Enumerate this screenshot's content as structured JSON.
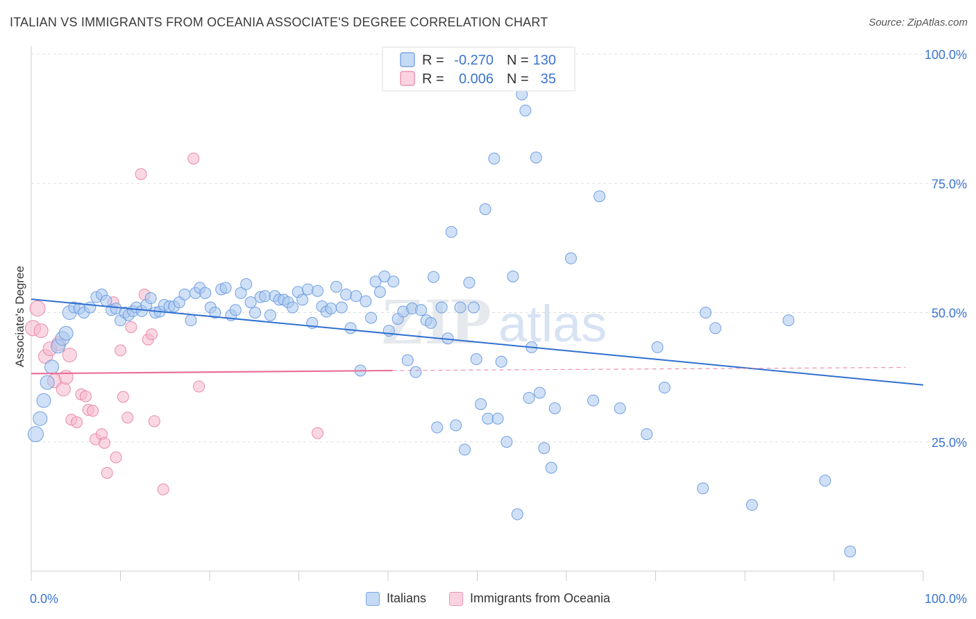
{
  "title": "ITALIAN VS IMMIGRANTS FROM OCEANIA ASSOCIATE'S DEGREE CORRELATION CHART",
  "source": "Source: ZipAtlas.com",
  "watermark": {
    "zip": "ZIP",
    "atlas": "atlas"
  },
  "colors": {
    "blue_fill": "#a9c8f0",
    "blue_stroke": "#6f9ee0",
    "blue_line": "#2f6fd1",
    "pink_fill": "#f6b8cc",
    "pink_stroke": "#e98aa8",
    "pink_line": "#e8709a",
    "axis_text": "#3b74d0",
    "grid": "#dddddd"
  },
  "stats_legend": [
    {
      "r_label": "R =",
      "r_value": "-0.270",
      "n_label": "N =",
      "n_value": "130",
      "color": "blue"
    },
    {
      "r_label": "R =",
      "r_value": "0.006",
      "n_label": "N =",
      "n_value": "35",
      "color": "pink"
    }
  ],
  "chart_data": {
    "type": "scatter",
    "title": "ITALIAN VS IMMIGRANTS FROM OCEANIA ASSOCIATE'S DEGREE CORRELATION CHART",
    "xlabel": "",
    "ylabel": "Associate's Degree",
    "xlim": [
      0,
      100
    ],
    "ylim": [
      0,
      100
    ],
    "x_tick_labels": [
      "0.0%",
      "100.0%"
    ],
    "y_ticks": [
      25,
      50,
      75,
      100
    ],
    "y_tick_labels": [
      "25.0%",
      "50.0%",
      "75.0%",
      "100.0%"
    ],
    "grid": true,
    "legend_position": "bottom",
    "series": [
      {
        "name": "Italians",
        "color": "blue",
        "trend": {
          "x0": 0,
          "y0": 52.6,
          "x1": 100,
          "y1": 36.0
        },
        "points": [
          [
            0.5,
            26.5
          ],
          [
            1.0,
            29.5
          ],
          [
            1.4,
            33.0
          ],
          [
            1.8,
            36.5
          ],
          [
            2.3,
            39.5
          ],
          [
            3.0,
            43.5
          ],
          [
            3.5,
            45.0
          ],
          [
            3.9,
            46.0
          ],
          [
            4.3,
            50.0
          ],
          [
            4.8,
            51.0
          ],
          [
            5.4,
            50.8
          ],
          [
            5.9,
            50.0
          ],
          [
            6.6,
            51.0
          ],
          [
            7.3,
            53.0
          ],
          [
            7.9,
            53.5
          ],
          [
            8.4,
            52.3
          ],
          [
            9.0,
            50.5
          ],
          [
            9.5,
            50.8
          ],
          [
            10.0,
            48.5
          ],
          [
            10.5,
            50.0
          ],
          [
            10.9,
            49.5
          ],
          [
            11.4,
            50.3
          ],
          [
            11.8,
            51.0
          ],
          [
            12.4,
            50.3
          ],
          [
            12.9,
            51.5
          ],
          [
            13.4,
            52.8
          ],
          [
            13.9,
            50.0
          ],
          [
            14.4,
            50.2
          ],
          [
            14.9,
            51.5
          ],
          [
            15.5,
            51.2
          ],
          [
            16.0,
            51.2
          ],
          [
            16.6,
            52.0
          ],
          [
            17.2,
            53.5
          ],
          [
            17.9,
            48.5
          ],
          [
            18.4,
            53.8
          ],
          [
            18.9,
            54.8
          ],
          [
            19.5,
            53.8
          ],
          [
            20.1,
            51.0
          ],
          [
            20.6,
            50.0
          ],
          [
            21.3,
            54.5
          ],
          [
            21.8,
            54.8
          ],
          [
            22.4,
            49.5
          ],
          [
            22.9,
            50.5
          ],
          [
            23.5,
            53.8
          ],
          [
            24.1,
            55.5
          ],
          [
            24.6,
            52.0
          ],
          [
            25.1,
            50.0
          ],
          [
            25.7,
            53.0
          ],
          [
            26.2,
            53.2
          ],
          [
            26.8,
            49.5
          ],
          [
            27.3,
            53.2
          ],
          [
            27.8,
            52.5
          ],
          [
            28.3,
            52.5
          ],
          [
            28.8,
            52.0
          ],
          [
            29.3,
            51.0
          ],
          [
            29.9,
            54.0
          ],
          [
            30.4,
            52.5
          ],
          [
            31.0,
            54.5
          ],
          [
            31.5,
            48.0
          ],
          [
            32.1,
            54.2
          ],
          [
            32.6,
            51.2
          ],
          [
            33.1,
            50.2
          ],
          [
            33.6,
            50.8
          ],
          [
            34.2,
            55.0
          ],
          [
            34.8,
            51.0
          ],
          [
            35.3,
            53.5
          ],
          [
            35.8,
            47.0
          ],
          [
            36.4,
            53.2
          ],
          [
            36.9,
            38.8
          ],
          [
            37.5,
            52.2
          ],
          [
            38.1,
            49.0
          ],
          [
            38.6,
            56.0
          ],
          [
            39.1,
            54.0
          ],
          [
            39.6,
            57.0
          ],
          [
            40.1,
            46.5
          ],
          [
            40.6,
            56.0
          ],
          [
            41.1,
            48.8
          ],
          [
            41.7,
            50.2
          ],
          [
            42.2,
            40.8
          ],
          [
            42.7,
            50.8
          ],
          [
            43.1,
            38.5
          ],
          [
            43.7,
            50.5
          ],
          [
            44.3,
            48.5
          ],
          [
            44.8,
            48.0
          ],
          [
            45.1,
            56.9
          ],
          [
            45.5,
            27.8
          ],
          [
            46.0,
            51.0
          ],
          [
            46.7,
            45.0
          ],
          [
            47.1,
            65.6
          ],
          [
            47.6,
            28.2
          ],
          [
            48.1,
            51.0
          ],
          [
            48.6,
            23.5
          ],
          [
            49.1,
            55.8
          ],
          [
            49.6,
            51.0
          ],
          [
            49.9,
            41.0
          ],
          [
            50.4,
            32.3
          ],
          [
            50.9,
            70.0
          ],
          [
            51.2,
            29.5
          ],
          [
            51.9,
            79.8
          ],
          [
            52.3,
            29.5
          ],
          [
            52.7,
            40.5
          ],
          [
            53.3,
            25.0
          ],
          [
            54.0,
            57.0
          ],
          [
            54.5,
            11.0
          ],
          [
            55.0,
            92.2
          ],
          [
            55.4,
            89.1
          ],
          [
            55.8,
            33.5
          ],
          [
            56.1,
            43.3
          ],
          [
            56.6,
            80.0
          ],
          [
            57.0,
            34.5
          ],
          [
            57.5,
            23.8
          ],
          [
            58.3,
            20.0
          ],
          [
            58.7,
            31.5
          ],
          [
            60.5,
            60.5
          ],
          [
            63.0,
            33.0
          ],
          [
            63.7,
            72.5
          ],
          [
            66.0,
            31.5
          ],
          [
            69.0,
            26.5
          ],
          [
            70.2,
            43.3
          ],
          [
            71.0,
            35.5
          ],
          [
            75.3,
            16.0
          ],
          [
            75.6,
            50.0
          ],
          [
            76.7,
            47.0
          ],
          [
            80.8,
            12.8
          ],
          [
            84.9,
            48.5
          ],
          [
            89.0,
            17.5
          ],
          [
            91.8,
            3.8
          ]
        ]
      },
      {
        "name": "Immigrants from Oceania",
        "color": "pink",
        "trend": {
          "x0": 0,
          "y0": 38.2,
          "x1": 40.5,
          "y1": 38.8,
          "dashed_to_x": 98,
          "dashed_to_y": 39.4
        },
        "points": [
          [
            0.2,
            47.0
          ],
          [
            0.7,
            50.8
          ],
          [
            1.1,
            46.5
          ],
          [
            1.6,
            41.5
          ],
          [
            2.1,
            43.0
          ],
          [
            2.6,
            36.8
          ],
          [
            3.1,
            44.0
          ],
          [
            3.6,
            35.2
          ],
          [
            3.9,
            37.5
          ],
          [
            4.3,
            41.8
          ],
          [
            4.5,
            29.3
          ],
          [
            5.1,
            28.8
          ],
          [
            5.6,
            34.2
          ],
          [
            6.1,
            33.8
          ],
          [
            6.4,
            31.2
          ],
          [
            6.9,
            31.0
          ],
          [
            7.2,
            25.5
          ],
          [
            7.9,
            26.5
          ],
          [
            8.2,
            24.8
          ],
          [
            8.5,
            19.0
          ],
          [
            9.2,
            52.0
          ],
          [
            9.5,
            22.0
          ],
          [
            10.0,
            42.7
          ],
          [
            10.3,
            33.7
          ],
          [
            10.8,
            29.7
          ],
          [
            11.2,
            47.2
          ],
          [
            12.3,
            76.8
          ],
          [
            12.7,
            53.5
          ],
          [
            13.1,
            44.8
          ],
          [
            13.5,
            45.8
          ],
          [
            13.8,
            29.0
          ],
          [
            14.8,
            15.8
          ],
          [
            18.2,
            79.8
          ],
          [
            18.8,
            35.7
          ],
          [
            32.1,
            26.7
          ]
        ]
      }
    ]
  }
}
